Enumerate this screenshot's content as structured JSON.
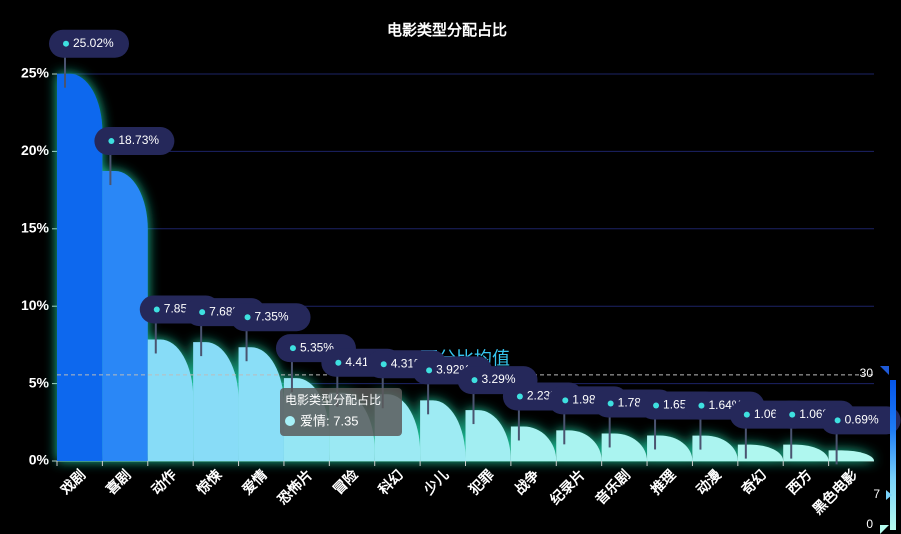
{
  "chart_data": {
    "type": "bar",
    "title": "电影类型分配占比",
    "categories": [
      "戏剧",
      "喜剧",
      "动作",
      "惊悚",
      "爱情",
      "恐怖片",
      "冒险",
      "科幻",
      "少儿",
      "犯罪",
      "战争",
      "纪录片",
      "音乐剧",
      "推理",
      "动漫",
      "奇幻",
      "西方",
      "黑色电影"
    ],
    "values": [
      25.02,
      18.73,
      7.85,
      7.68,
      7.35,
      5.35,
      4.41,
      4.31,
      3.92,
      3.29,
      2.23,
      1.98,
      1.78,
      1.65,
      1.64,
      1.06,
      1.06,
      0.69
    ],
    "value_labels": [
      "25.02%",
      "18.73%",
      "7.85%",
      "7.68%",
      "7.35%",
      "5.35%",
      "4.41%",
      "4.31%",
      "3.92%",
      "3.29%",
      "2.23%",
      "1.98%",
      "1.78%",
      "1.65%",
      "1.64%",
      "1.06%",
      "1.06%",
      "0.69%"
    ],
    "ylim": [
      0,
      25
    ],
    "yticks": [
      {
        "value": 0,
        "label": "0%"
      },
      {
        "value": 5,
        "label": "5%"
      },
      {
        "value": 10,
        "label": "10%"
      },
      {
        "value": 15,
        "label": "15%"
      },
      {
        "value": 20,
        "label": "20%"
      },
      {
        "value": 25,
        "label": "25%"
      }
    ],
    "grid": true,
    "mean": {
      "label": "百分比均值",
      "value": 5.56
    },
    "visual_map": {
      "range": [
        0,
        30
      ],
      "pointer": 7,
      "colors": [
        "#b5fbee",
        "#7ad3fa",
        "#1e7cf5",
        "#0555e8"
      ]
    },
    "tooltip": {
      "title": "电影类型分配占比",
      "item": "爱情: 7.35"
    }
  }
}
